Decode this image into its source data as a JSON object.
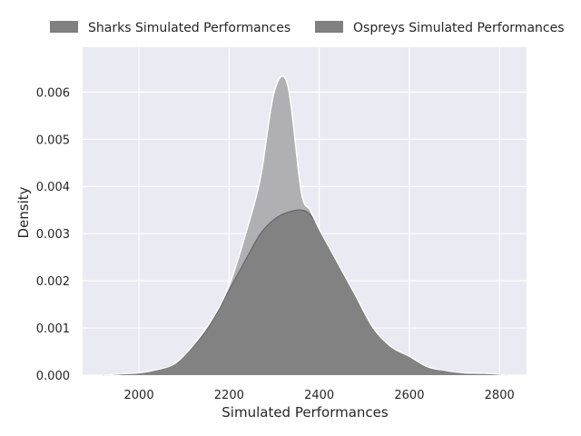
{
  "chart_data": {
    "type": "area",
    "xlabel": "Simulated Performances",
    "ylabel": "Density",
    "xlim": [
      1875,
      2860
    ],
    "ylim": [
      0,
      0.00695
    ],
    "x_ticks": [
      2000,
      2200,
      2400,
      2600,
      2800
    ],
    "y_ticks": [
      0.0,
      0.001,
      0.002,
      0.003,
      0.004,
      0.005,
      0.006
    ],
    "x_tick_labels": [
      "2000",
      "2200",
      "2400",
      "2600",
      "2800"
    ],
    "y_tick_labels": [
      "0.000",
      "0.001",
      "0.002",
      "0.003",
      "0.004",
      "0.005",
      "0.006"
    ],
    "grid": true,
    "legend_placement": "top",
    "stacked": true,
    "background_color": "#eaeaf2",
    "series": [
      {
        "name": "Sharks Simulated Performances",
        "color": "#808080",
        "stroke": "#6a6a6a",
        "x": [
          1920,
          1960,
          2000,
          2040,
          2080,
          2120,
          2160,
          2200,
          2240,
          2270,
          2300,
          2330,
          2360,
          2380,
          2400,
          2440,
          2480,
          2520,
          2560,
          2600,
          2640,
          2680,
          2720,
          2760,
          2800,
          2815
        ],
        "y": [
          0.0,
          3e-05,
          5e-05,
          0.00012,
          0.00025,
          0.0006,
          0.0011,
          0.0018,
          0.0025,
          0.003,
          0.0033,
          0.00345,
          0.0035,
          0.0034,
          0.0031,
          0.0024,
          0.0017,
          0.001,
          0.0006,
          0.0004,
          0.00018,
          0.0001,
          5e-05,
          4e-05,
          2e-05,
          0.0
        ]
      },
      {
        "name": "Ospreys Simulated Performances",
        "color": "#a8a8ad",
        "stroke": "#ffffff",
        "x": [
          1920,
          1960,
          2000,
          2040,
          2080,
          2120,
          2160,
          2200,
          2240,
          2270,
          2300,
          2330,
          2360,
          2380,
          2400,
          2440,
          2480,
          2520,
          2560,
          2600,
          2640,
          2680,
          2720,
          2760,
          2800,
          2815
        ],
        "y": [
          0.0,
          0.0,
          0.0,
          0.0,
          0.0,
          3e-05,
          5e-05,
          0.0001,
          0.0006,
          0.0012,
          0.0027,
          0.0027,
          0.0004,
          0.0001,
          0.0,
          0.0,
          0.0,
          0.0,
          0.0,
          0.0,
          0.0,
          0.0,
          0.0,
          0.0,
          0.0,
          0.0
        ]
      }
    ]
  }
}
